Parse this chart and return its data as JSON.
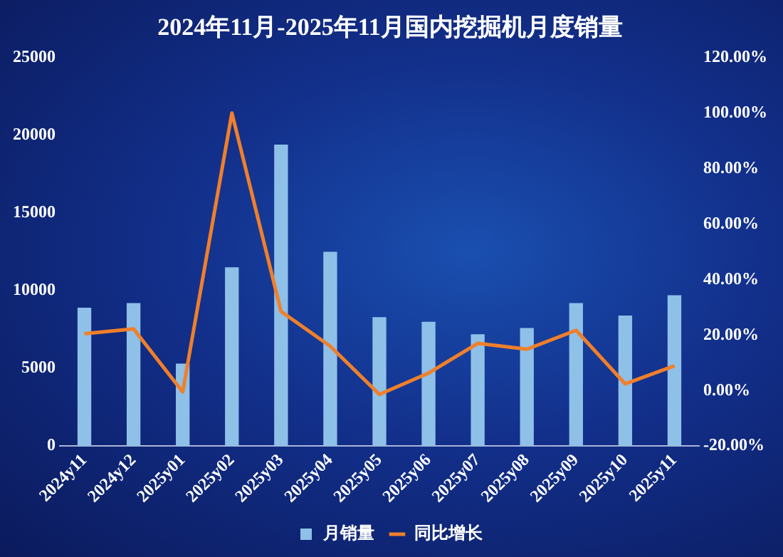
{
  "chart_data": {
    "type": "bar",
    "title": "2024年11月-2025年11月国内挖掘机月度销量",
    "categories": [
      "2024y11",
      "2024y12",
      "2025y01",
      "2025y02",
      "2025y03",
      "2025y04",
      "2025y05",
      "2025y06",
      "2025y07",
      "2025y08",
      "2025y09",
      "2025y10",
      "2025y11"
    ],
    "series": [
      {
        "name": "月销量",
        "color": "#8fc0e8",
        "values": [
          8900,
          9200,
          5300,
          11500,
          19400,
          12500,
          8300,
          8000,
          7200,
          7600,
          9200,
          8400,
          9700
        ]
      },
      {
        "name": "同比增长",
        "type": "line",
        "axis": "y2",
        "color": "#f07f2a",
        "values": [
          20.5,
          22.2,
          -0.5,
          100,
          28.5,
          16,
          -1.4,
          6.3,
          17,
          14.9,
          21.7,
          2.4,
          8.9
        ]
      }
    ],
    "ylim": [
      0,
      25000
    ],
    "yticks": [
      0,
      5000,
      10000,
      15000,
      20000,
      25000
    ],
    "y2lim": [
      -20,
      120
    ],
    "y2ticks": [
      {
        "value": -20,
        "label": "-20.00%"
      },
      {
        "value": 0,
        "label": "0.00%"
      },
      {
        "value": 20,
        "label": "20.00%"
      },
      {
        "value": 40,
        "label": "40.00%"
      },
      {
        "value": 60,
        "label": "60.00%"
      },
      {
        "value": 80,
        "label": "80.00%"
      },
      {
        "value": 100,
        "label": "100.00%"
      },
      {
        "value": 120,
        "label": "120.00%"
      }
    ],
    "marker": "none",
    "legend": "bottom"
  }
}
